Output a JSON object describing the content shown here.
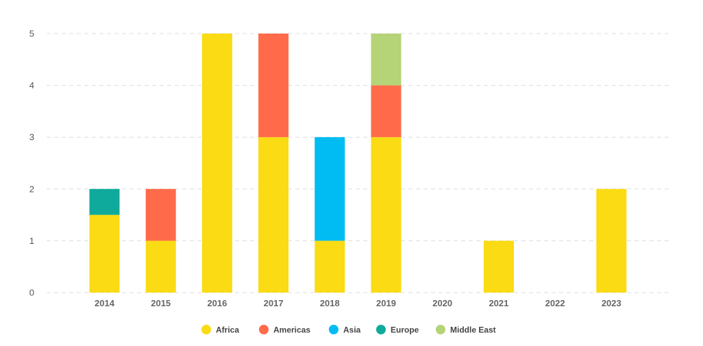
{
  "chart_data": {
    "type": "bar",
    "stacked": true,
    "title": "",
    "xlabel": "",
    "ylabel": "",
    "categories": [
      "2014",
      "2015",
      "2016",
      "2017",
      "2018",
      "2019",
      "2020",
      "2021",
      "2022",
      "2023"
    ],
    "ylim": [
      0,
      5
    ],
    "yticks": [
      0,
      1,
      2,
      3,
      4,
      5
    ],
    "grid": true,
    "legend_position": "bottom",
    "series": [
      {
        "name": "Africa",
        "color": "#FADB14",
        "values": [
          1.5,
          1,
          5,
          3,
          1,
          3,
          0,
          1,
          0,
          2
        ]
      },
      {
        "name": "Americas",
        "color": "#FF6B4A",
        "values": [
          0,
          1,
          0,
          2,
          0,
          1,
          0,
          0,
          0,
          0
        ]
      },
      {
        "name": "Asia",
        "color": "#00BCF2",
        "values": [
          0,
          0,
          0,
          0,
          2,
          0,
          0,
          0,
          0,
          0
        ]
      },
      {
        "name": "Europe",
        "color": "#0FAA9C",
        "values": [
          0.5,
          0,
          0,
          0,
          0,
          0,
          0,
          0,
          0,
          0
        ]
      },
      {
        "name": "Middle East",
        "color": "#B5D377",
        "values": [
          0,
          0,
          0,
          0,
          0,
          1,
          0,
          0,
          0,
          0
        ]
      }
    ]
  }
}
